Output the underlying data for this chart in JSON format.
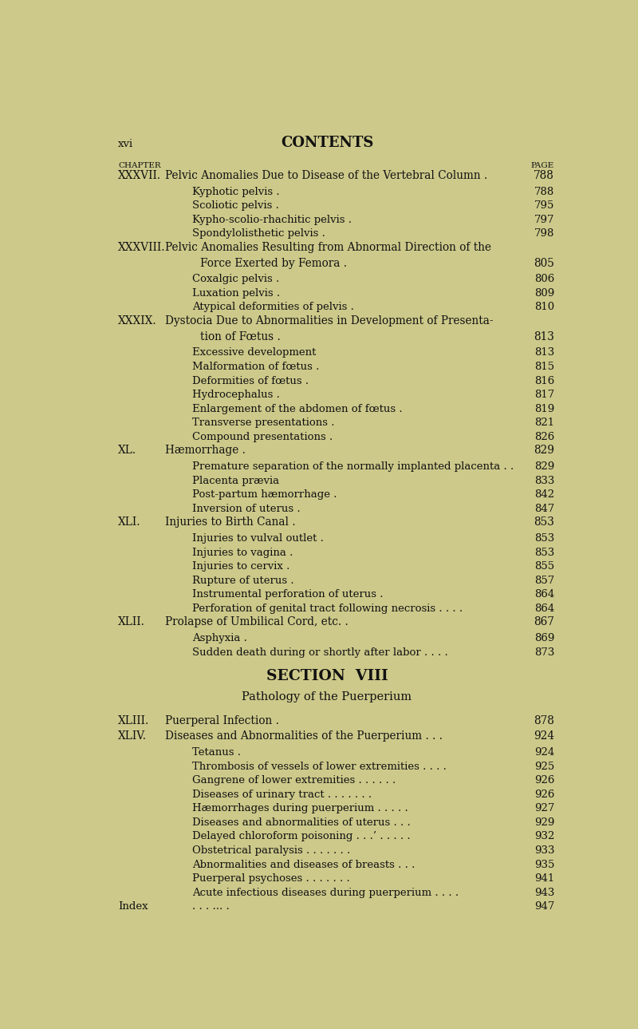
{
  "background_color": "#cdc98a",
  "text_color": "#111111",
  "header_xvi": "xvi",
  "header_contents": "CONTENTS",
  "col_chapter": "CHAPTER",
  "col_page": "PAGE",
  "entries": [
    {
      "level": 0,
      "roman": "XXXVII.",
      "text": "Pelvic Anomalies Due to Disease of the Vertebral Column .",
      "page": "788",
      "cont": false
    },
    {
      "level": 1,
      "roman": "",
      "text": "Kyphotic pelvis .",
      "page": "788",
      "cont": false
    },
    {
      "level": 1,
      "roman": "",
      "text": "Scoliotic pelvis .",
      "page": "795",
      "cont": false
    },
    {
      "level": 1,
      "roman": "",
      "text": "Kypho-scolio-rhachitic pelvis .",
      "page": "797",
      "cont": false
    },
    {
      "level": 1,
      "roman": "",
      "text": "Spondylolisthetic pelvis .",
      "page": "798",
      "cont": false
    },
    {
      "level": 0,
      "roman": "XXXVIII.",
      "text": "Pelvic Anomalies Resulting from Abnormal Direction of the",
      "page": "",
      "cont": false
    },
    {
      "level": 0,
      "roman": "",
      "text": "Force Exerted by Femora .",
      "page": "805",
      "cont": true
    },
    {
      "level": 1,
      "roman": "",
      "text": "Coxalgic pelvis .",
      "page": "806",
      "cont": false
    },
    {
      "level": 1,
      "roman": "",
      "text": "Luxation pelvis .",
      "page": "809",
      "cont": false
    },
    {
      "level": 1,
      "roman": "",
      "text": "Atypical deformities of pelvis .",
      "page": "810",
      "cont": false
    },
    {
      "level": 0,
      "roman": "XXXIX.",
      "text": "Dystocia Due to Abnormalities in Development of Presenta-",
      "page": "",
      "cont": false
    },
    {
      "level": 0,
      "roman": "",
      "text": "tion of Fœtus .",
      "page": "813",
      "cont": true
    },
    {
      "level": 1,
      "roman": "",
      "text": "Excessive development",
      "page": "813",
      "cont": false
    },
    {
      "level": 1,
      "roman": "",
      "text": "Malformation of fœtus .",
      "page": "815",
      "cont": false
    },
    {
      "level": 1,
      "roman": "",
      "text": "Deformities of fœtus .",
      "page": "816",
      "cont": false
    },
    {
      "level": 1,
      "roman": "",
      "text": "Hydrocephalus .",
      "page": "817",
      "cont": false
    },
    {
      "level": 1,
      "roman": "",
      "text": "Enlargement of the abdomen of fœtus .",
      "page": "819",
      "cont": false
    },
    {
      "level": 1,
      "roman": "",
      "text": "Transverse presentations .",
      "page": "821",
      "cont": false
    },
    {
      "level": 1,
      "roman": "",
      "text": "Compound presentations .",
      "page": "826",
      "cont": false
    },
    {
      "level": 0,
      "roman": "XL.",
      "text": "Hæmorrhage .",
      "page": "829",
      "cont": false
    },
    {
      "level": 1,
      "roman": "",
      "text": "Premature separation of the normally implanted placenta . .",
      "page": "829",
      "cont": false
    },
    {
      "level": 1,
      "roman": "",
      "text": "Placenta prævia",
      "page": "833",
      "cont": false
    },
    {
      "level": 1,
      "roman": "",
      "text": "Post-partum hæmorrhage .",
      "page": "842",
      "cont": false
    },
    {
      "level": 1,
      "roman": "",
      "text": "Inversion of uterus .",
      "page": "847",
      "cont": false
    },
    {
      "level": 0,
      "roman": "XLI.",
      "text": "Injuries to Birth Canal .",
      "page": "853",
      "cont": false
    },
    {
      "level": 1,
      "roman": "",
      "text": "Injuries to vulval outlet .",
      "page": "853",
      "cont": false
    },
    {
      "level": 1,
      "roman": "",
      "text": "Injuries to vagina .",
      "page": "853",
      "cont": false
    },
    {
      "level": 1,
      "roman": "",
      "text": "Injuries to cervix .",
      "page": "855",
      "cont": false
    },
    {
      "level": 1,
      "roman": "",
      "text": "Rupture of uterus .",
      "page": "857",
      "cont": false
    },
    {
      "level": 1,
      "roman": "",
      "text": "Instrumental perforation of uterus .",
      "page": "864",
      "cont": false
    },
    {
      "level": 1,
      "roman": "",
      "text": "Perforation of genital tract following necrosis . . . .",
      "page": "864",
      "cont": false
    },
    {
      "level": 0,
      "roman": "XLII.",
      "text": "Prolapse of Umbilical Cord, etc. .",
      "page": "867",
      "cont": false
    },
    {
      "level": 1,
      "roman": "",
      "text": "Asphyxia .",
      "page": "869",
      "cont": false
    },
    {
      "level": 1,
      "roman": "",
      "text": "Sudden death during or shortly after labor . . . .",
      "page": "873",
      "cont": false
    },
    {
      "level": 8,
      "roman": "",
      "text": "SECTION  VIII",
      "page": "",
      "cont": false
    },
    {
      "level": 9,
      "roman": "",
      "text": "Pathology of the Puerperium",
      "page": "",
      "cont": false
    },
    {
      "level": 0,
      "roman": "XLIII.",
      "text": "Puerperal Infection .",
      "page": "878",
      "cont": false
    },
    {
      "level": 0,
      "roman": "XLIV.",
      "text": "Diseases and Abnormalities of the Puerperium . . .",
      "page": "924",
      "cont": false
    },
    {
      "level": 1,
      "roman": "",
      "text": "Tetanus .",
      "page": "924",
      "cont": false
    },
    {
      "level": 1,
      "roman": "",
      "text": "Thrombosis of vessels of lower extremities . . . .",
      "page": "925",
      "cont": false
    },
    {
      "level": 1,
      "roman": "",
      "text": "Gangrene of lower extremities . . . . . .",
      "page": "926",
      "cont": false
    },
    {
      "level": 1,
      "roman": "",
      "text": "Diseases of urinary tract . . . . . . .",
      "page": "926",
      "cont": false
    },
    {
      "level": 1,
      "roman": "",
      "text": "Hæmorrhages during puerperium . . . . .",
      "page": "927",
      "cont": false
    },
    {
      "level": 1,
      "roman": "",
      "text": "Diseases and abnormalities of uterus . . .",
      "page": "929",
      "cont": false
    },
    {
      "level": 1,
      "roman": "",
      "text": "Delayed chloroform poisoning . . .’ . . . . .",
      "page": "932",
      "cont": false
    },
    {
      "level": 1,
      "roman": "",
      "text": "Obstetrical paralysis . . . . . . .",
      "page": "933",
      "cont": false
    },
    {
      "level": 1,
      "roman": "",
      "text": "Abnormalities and diseases of breasts . . .",
      "page": "935",
      "cont": false
    },
    {
      "level": 1,
      "roman": "",
      "text": "Puerperal psychoses . . . . . . .",
      "page": "941",
      "cont": false
    },
    {
      "level": 1,
      "roman": "",
      "text": "Acute infectious diseases during puerperium . . . .",
      "page": "943",
      "cont": false
    },
    {
      "level": 5,
      "roman": "Index",
      "text": ". . . ... .",
      "page": "947",
      "cont": false
    }
  ]
}
